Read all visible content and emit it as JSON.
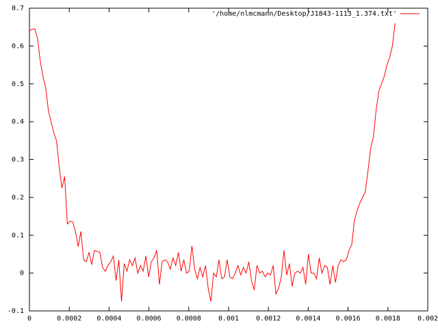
{
  "chart_data": {
    "type": "line",
    "x": [
      0,
      1.36e-05,
      2.72e-05,
      4.08e-05,
      5.44e-05,
      6.8e-05,
      8.16e-05,
      9.52e-05,
      0.0001088,
      0.0001224,
      0.000136,
      0.0001496,
      0.0001632,
      0.0001768,
      0.0001904,
      0.000204,
      0.0002176,
      0.0002312,
      0.0002448,
      0.0002584,
      0.000272,
      0.0002856,
      0.0002992,
      0.0003128,
      0.0003264,
      0.00034,
      0.0003536,
      0.0003672,
      0.0003808,
      0.0003944,
      0.000408,
      0.0004216,
      0.0004352,
      0.0004488,
      0.0004624,
      0.000476,
      0.0004896,
      0.0005032,
      0.0005168,
      0.0005304,
      0.000544,
      0.0005576,
      0.0005712,
      0.0005848,
      0.0005984,
      0.000612,
      0.0006256,
      0.0006392,
      0.0006528,
      0.0006664,
      0.00068,
      0.0006936,
      0.0007072,
      0.0007208,
      0.0007344,
      0.000748,
      0.0007616,
      0.0007752,
      0.0007888,
      0.0008024,
      0.000816,
      0.0008296,
      0.0008432,
      0.0008568,
      0.0008704,
      0.000884,
      0.0008976,
      0.0009112,
      0.0009248,
      0.0009384,
      0.000952,
      0.0009656,
      0.0009792,
      0.0009928,
      0.0010064,
      0.00102,
      0.0010336,
      0.0010472,
      0.0010608,
      0.0010744,
      0.001088,
      0.0011016,
      0.0011152,
      0.0011288,
      0.0011424,
      0.001156,
      0.0011696,
      0.0011832,
      0.0011968,
      0.0012104,
      0.001224,
      0.0012376,
      0.0012512,
      0.0012648,
      0.0012784,
      0.001292,
      0.0013056,
      0.0013192,
      0.0013328,
      0.0013464,
      0.00136,
      0.0013736,
      0.0013872,
      0.0014008,
      0.0014144,
      0.001428,
      0.0014416,
      0.0014552,
      0.0014688,
      0.0014824,
      0.001496,
      0.0015096,
      0.0015232,
      0.0015368,
      0.0015504,
      0.001564,
      0.0015776,
      0.0015912,
      0.0016048,
      0.0016184,
      0.001632,
      0.0016456,
      0.0016592,
      0.0016728,
      0.0016864,
      0.0017,
      0.0017136,
      0.0017272,
      0.0017408,
      0.0017544,
      0.001768,
      0.0017816,
      0.0017952,
      0.0018088,
      0.0018224,
      0.001836
    ],
    "series": [
      {
        "name": "'/home/nlmcmann/Desktop/J1843-1113_1.374.txt'",
        "color": "#ff0000",
        "values": [
          0.64,
          0.645,
          0.645,
          0.62,
          0.56,
          0.52,
          0.49,
          0.43,
          0.4,
          0.37,
          0.35,
          0.28,
          0.225,
          0.255,
          0.13,
          0.137,
          0.135,
          0.11,
          0.07,
          0.11,
          0.035,
          0.03,
          0.055,
          0.022,
          0.06,
          0.057,
          0.055,
          0.015,
          0.005,
          0.02,
          0.03,
          0.045,
          -0.02,
          0.035,
          -0.075,
          0.025,
          0.005,
          0.035,
          0.02,
          0.04,
          0.0,
          0.02,
          0.005,
          0.045,
          -0.01,
          0.03,
          0.04,
          0.06,
          -0.03,
          0.03,
          0.035,
          0.03,
          0.01,
          0.04,
          0.02,
          0.055,
          0.005,
          0.035,
          0.0,
          0.005,
          0.072,
          0.01,
          -0.015,
          0.015,
          -0.01,
          0.02,
          -0.04,
          -0.075,
          0.0,
          -0.01,
          0.035,
          -0.015,
          -0.01,
          0.035,
          -0.01,
          -0.015,
          0.0,
          0.02,
          -0.005,
          0.015,
          0.0,
          0.03,
          -0.02,
          -0.045,
          0.02,
          0.0,
          0.005,
          -0.01,
          0.0,
          -0.005,
          0.02,
          -0.055,
          -0.04,
          -0.01,
          0.06,
          -0.005,
          0.025,
          -0.035,
          0.0,
          0.005,
          0.0,
          0.015,
          -0.03,
          0.05,
          0.0,
          0.0,
          -0.015,
          0.04,
          0.0,
          0.02,
          0.015,
          -0.03,
          0.02,
          -0.025,
          0.02,
          0.035,
          0.03,
          0.035,
          0.06,
          0.075,
          0.14,
          0.165,
          0.185,
          0.2,
          0.215,
          0.27,
          0.33,
          0.36,
          0.43,
          0.48,
          0.5,
          0.52,
          0.55,
          0.57,
          0.6,
          0.66
        ]
      }
    ],
    "xlim": [
      0,
      0.002
    ],
    "ylim": [
      -0.1,
      0.7
    ],
    "xticks": [
      0,
      0.0002,
      0.0004,
      0.0006,
      0.0008,
      0.001,
      0.0012,
      0.0014,
      0.0016,
      0.0018,
      0.002
    ],
    "yticks": [
      -0.1,
      0,
      0.1,
      0.2,
      0.3,
      0.4,
      0.5,
      0.6,
      0.7
    ],
    "legend": "top-right"
  }
}
